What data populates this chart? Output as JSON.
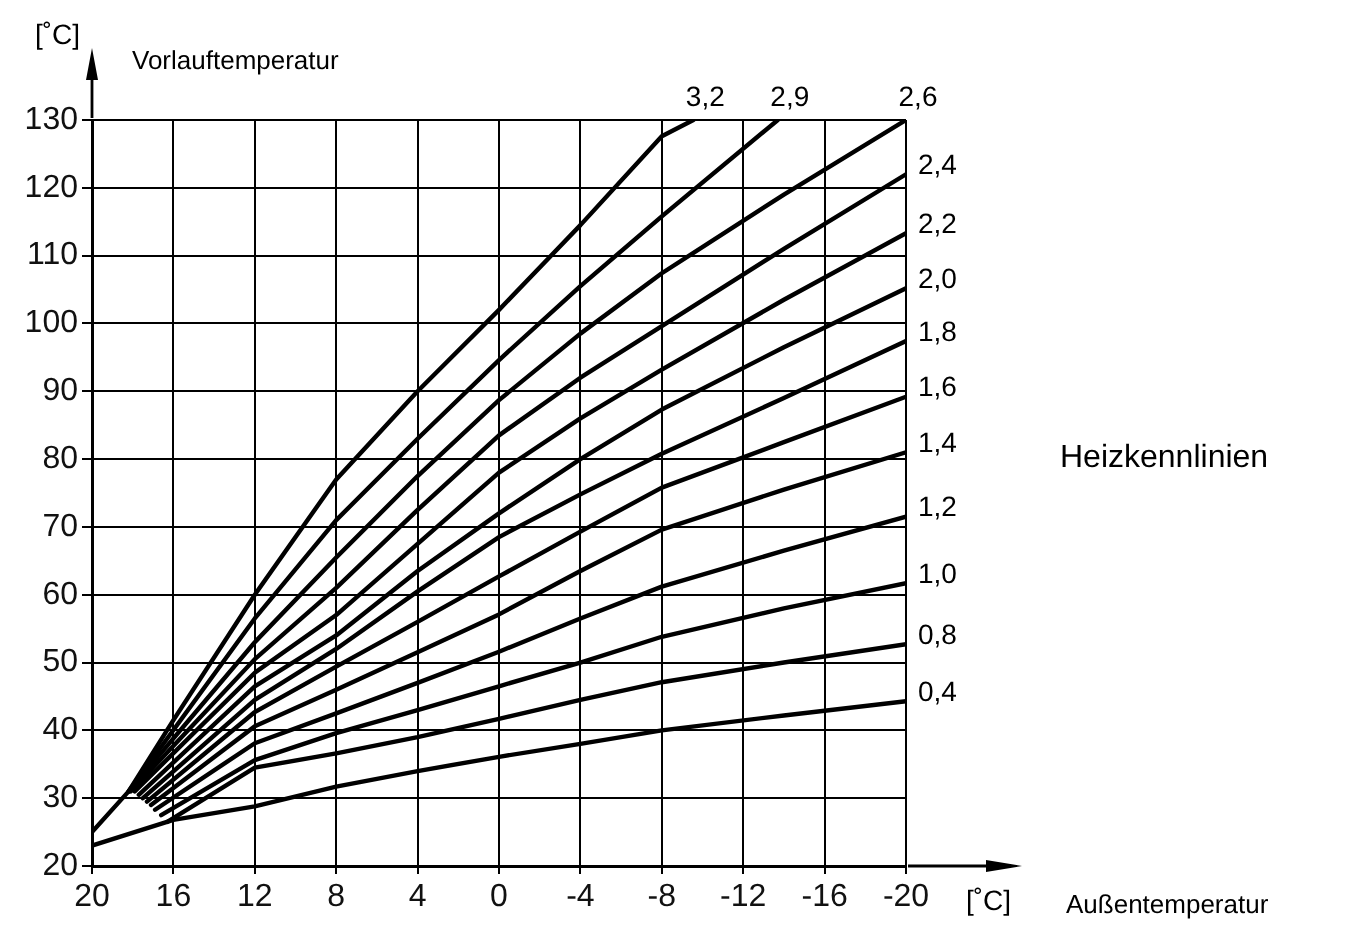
{
  "chart_data": {
    "type": "line",
    "title": "Heizkennlinien",
    "ylabel": "Vorlauftemperatur",
    "annotations": [
      "[˚C]",
      "[˚C]",
      "Außentemperatur"
    ],
    "xlim": [
      20,
      -20
    ],
    "xticks": [
      20,
      16,
      12,
      8,
      4,
      0,
      -4,
      -8,
      -12,
      -16,
      -20
    ],
    "ylim": [
      20,
      130
    ],
    "yticks": [
      20,
      30,
      40,
      50,
      60,
      70,
      80,
      90,
      100,
      110,
      120,
      130
    ],
    "grid": true,
    "legend": false,
    "marker": "none",
    "line_style": "solid",
    "series": [
      {
        "name": "0,4",
        "color": "#000000",
        "x": [
          20,
          16,
          12,
          8,
          4,
          0,
          -4,
          -8,
          -14,
          -20
        ],
        "values": [
          23,
          26.8,
          28.8,
          31.7,
          34,
          36.1,
          38,
          40,
          42.2,
          44.3
        ]
      },
      {
        "name": "0,8",
        "color": "#000000",
        "x": [
          16.3,
          12,
          8,
          4,
          0,
          -4,
          -8,
          -14,
          -20
        ],
        "values": [
          26.5,
          34.5,
          36.6,
          39,
          41.7,
          44.5,
          47.1,
          50,
          52.7
        ]
      },
      {
        "name": "1,0",
        "color": "#000000",
        "x": [
          16.6,
          12,
          8,
          4,
          0,
          -4,
          -8,
          -14,
          -20
        ],
        "values": [
          27.5,
          35.6,
          39.6,
          43,
          46.5,
          50,
          53.8,
          58,
          61.7
        ]
      },
      {
        "name": "1,2",
        "color": "#000000",
        "x": [
          16.9,
          12,
          8,
          4,
          0,
          -4,
          -8,
          -14,
          -20
        ],
        "values": [
          28.3,
          38.1,
          42.5,
          47,
          51.6,
          56.5,
          61.2,
          66.5,
          71.5
        ]
      },
      {
        "name": "1,4",
        "color": "#000000",
        "x": [
          17.1,
          12,
          8,
          4,
          0,
          -4,
          -8,
          -14,
          -20
        ],
        "values": [
          29,
          40.6,
          46,
          51.5,
          57.1,
          63.5,
          69.6,
          75.5,
          81
        ]
      },
      {
        "name": "1,6",
        "color": "#000000",
        "x": [
          17.3,
          12,
          8,
          4,
          0,
          -4,
          -8,
          -14,
          -20
        ],
        "values": [
          29.5,
          42.7,
          49.4,
          56,
          62.7,
          69.3,
          75.8,
          82.5,
          89.2
        ]
      },
      {
        "name": "1,8",
        "color": "#000000",
        "x": [
          17.5,
          12,
          8,
          4,
          0,
          -4,
          -8,
          -14,
          -20
        ],
        "values": [
          30,
          44.5,
          52,
          60.5,
          68.5,
          74.8,
          80.8,
          89,
          97.4
        ]
      },
      {
        "name": "2,0",
        "color": "#000000",
        "x": [
          17.7,
          12,
          8,
          4,
          0,
          -4,
          -8,
          -14,
          -20
        ],
        "values": [
          30.5,
          46.5,
          54,
          63.5,
          72,
          80,
          87.3,
          96.5,
          105.2
        ]
      },
      {
        "name": "2,2",
        "color": "#000000",
        "x": [
          17.9,
          12,
          8,
          4,
          0,
          -4,
          -8,
          -14,
          -20
        ],
        "values": [
          31,
          48.5,
          57,
          67.5,
          78,
          86,
          93.2,
          103.5,
          113.3
        ]
      },
      {
        "name": "2,4",
        "color": "#000000",
        "x": [
          18.1,
          12,
          8,
          4,
          0,
          -4,
          -8,
          -14,
          -20
        ],
        "values": [
          31,
          50.5,
          61,
          72.5,
          83.5,
          92,
          99.6,
          111,
          122
        ]
      },
      {
        "name": "2,6",
        "color": "#000000",
        "x": [
          18.2,
          12,
          8,
          4,
          0,
          -4,
          -8,
          -14,
          -20
        ],
        "values": [
          31,
          53,
          65.5,
          77.5,
          88.7,
          98.5,
          107.4,
          119,
          130
        ]
      },
      {
        "name": "2,9",
        "color": "#000000",
        "x": [
          18.2,
          12,
          8,
          4,
          0,
          -4,
          -8,
          -13.7
        ],
        "values": [
          31,
          56.5,
          71,
          83,
          94.6,
          105.5,
          115.8,
          130
        ]
      },
      {
        "name": "3,2",
        "color": "#000000",
        "x": [
          20,
          18.2,
          16,
          12,
          8,
          4,
          0,
          -4,
          -8,
          -9.55
        ],
        "values": [
          25,
          31,
          41.5,
          60,
          77,
          90,
          102,
          114.5,
          127.6,
          130
        ]
      }
    ]
  }
}
